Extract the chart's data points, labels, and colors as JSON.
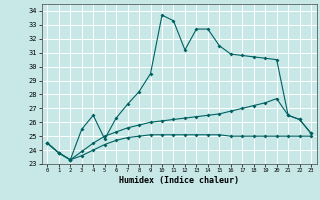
{
  "title": "",
  "xlabel": "Humidex (Indice chaleur)",
  "xlim": [
    -0.5,
    23.5
  ],
  "ylim": [
    23,
    34.5
  ],
  "yticks": [
    23,
    24,
    25,
    26,
    27,
    28,
    29,
    30,
    31,
    32,
    33,
    34
  ],
  "xticks": [
    0,
    1,
    2,
    3,
    4,
    5,
    6,
    7,
    8,
    9,
    10,
    11,
    12,
    13,
    14,
    15,
    16,
    17,
    18,
    19,
    20,
    21,
    22,
    23
  ],
  "background_color": "#c8e8e8",
  "grid_color": "#ffffff",
  "line_color": "#006060",
  "line1_y": [
    24.5,
    23.8,
    23.3,
    25.5,
    26.5,
    24.8,
    26.3,
    27.3,
    28.2,
    29.5,
    33.7,
    33.3,
    31.2,
    32.7,
    32.7,
    31.5,
    30.9,
    30.8,
    30.7,
    30.6,
    30.5,
    26.5,
    26.2,
    25.2
  ],
  "line2_y": [
    24.5,
    23.8,
    23.3,
    23.9,
    24.5,
    25.0,
    25.3,
    25.6,
    25.8,
    26.0,
    26.1,
    26.2,
    26.3,
    26.4,
    26.5,
    26.6,
    26.8,
    27.0,
    27.2,
    27.4,
    27.7,
    26.5,
    26.2,
    25.2
  ],
  "line3_y": [
    24.5,
    23.8,
    23.3,
    23.6,
    24.0,
    24.4,
    24.7,
    24.9,
    25.0,
    25.1,
    25.1,
    25.1,
    25.1,
    25.1,
    25.1,
    25.1,
    25.0,
    25.0,
    25.0,
    25.0,
    25.0,
    25.0,
    25.0,
    25.0
  ]
}
